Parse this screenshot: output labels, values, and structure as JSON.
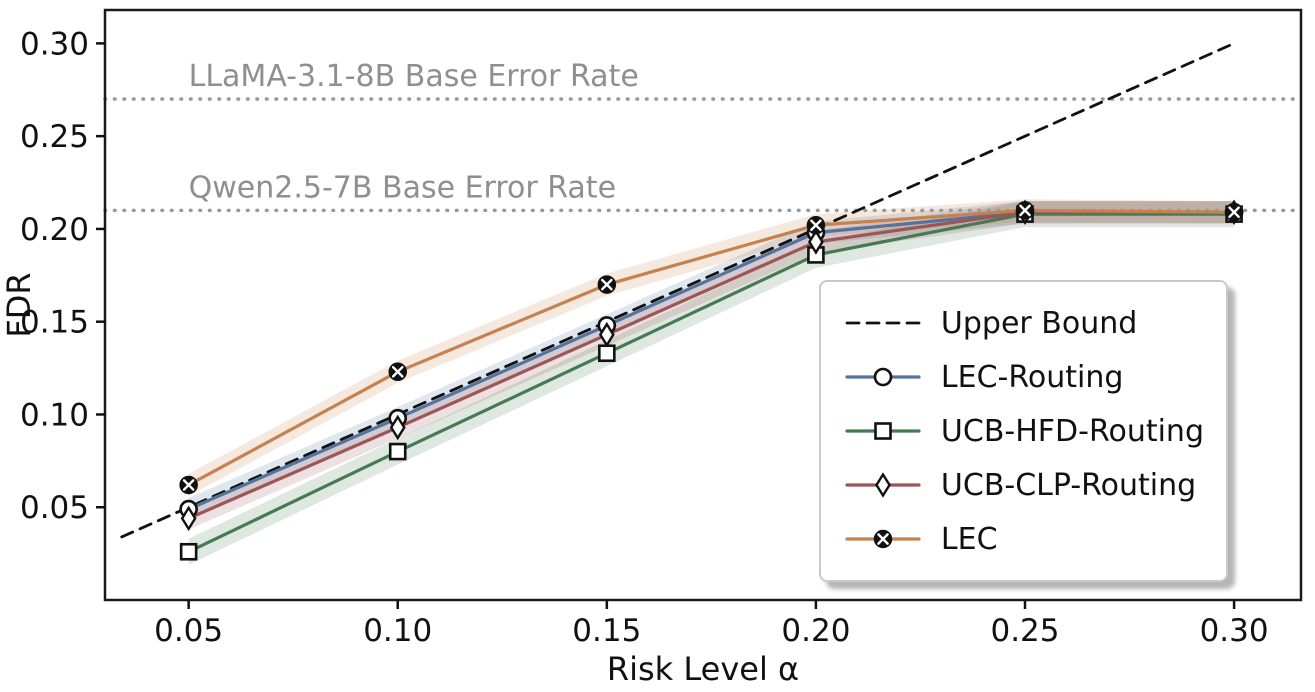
{
  "chart_data": {
    "type": "line",
    "title": "",
    "xlabel": "Risk Level α",
    "ylabel": "FDR",
    "x": [
      0.05,
      0.1,
      0.15,
      0.2,
      0.25,
      0.3
    ],
    "xticks": [
      "0.05",
      "0.10",
      "0.15",
      "0.20",
      "0.25",
      "0.30"
    ],
    "xtick_values": [
      0.05,
      0.1,
      0.15,
      0.2,
      0.25,
      0.3
    ],
    "yticks": [
      "0.05",
      "0.10",
      "0.15",
      "0.20",
      "0.25",
      "0.30"
    ],
    "ytick_values": [
      0.05,
      0.1,
      0.15,
      0.2,
      0.25,
      0.3
    ],
    "xlim": [
      0.03,
      0.316
    ],
    "ylim": [
      0.0,
      0.318
    ],
    "grid": false,
    "legend_position": "lower right",
    "series": [
      {
        "name": "Upper Bound",
        "color": "#111111",
        "line": "dashed",
        "marker": "none",
        "band": 0,
        "values": [
          0.05,
          0.1,
          0.15,
          0.2,
          0.25,
          0.3
        ]
      },
      {
        "name": "LEC-Routing",
        "color": "#55739d",
        "line": "solid",
        "marker": "circle",
        "band": 0.006,
        "values": [
          0.049,
          0.098,
          0.148,
          0.198,
          0.209,
          0.209
        ]
      },
      {
        "name": "UCB-HFD-Routing",
        "color": "#467a52",
        "line": "solid",
        "marker": "square",
        "band": 0.007,
        "values": [
          0.026,
          0.08,
          0.133,
          0.186,
          0.208,
          0.208
        ]
      },
      {
        "name": "UCB-CLP-Routing",
        "color": "#9d5555",
        "line": "solid",
        "marker": "diamond",
        "band": 0.006,
        "values": [
          0.044,
          0.093,
          0.143,
          0.193,
          0.209,
          0.209
        ]
      },
      {
        "name": "LEC",
        "color": "#c5824e",
        "line": "solid",
        "marker": "circle-x",
        "band": 0.006,
        "values": [
          0.062,
          0.123,
          0.17,
          0.202,
          0.21,
          0.209
        ]
      }
    ],
    "reference_lines": [
      {
        "label": "LLaMA-3.1-8B Base Error Rate",
        "y": 0.27,
        "color": "#9a9a9a",
        "label_color": "#8f8f8f"
      },
      {
        "label": "Qwen2.5-7B Base Error Rate",
        "y": 0.21,
        "color": "#9a9a9a",
        "label_color": "#8f8f8f"
      }
    ]
  }
}
